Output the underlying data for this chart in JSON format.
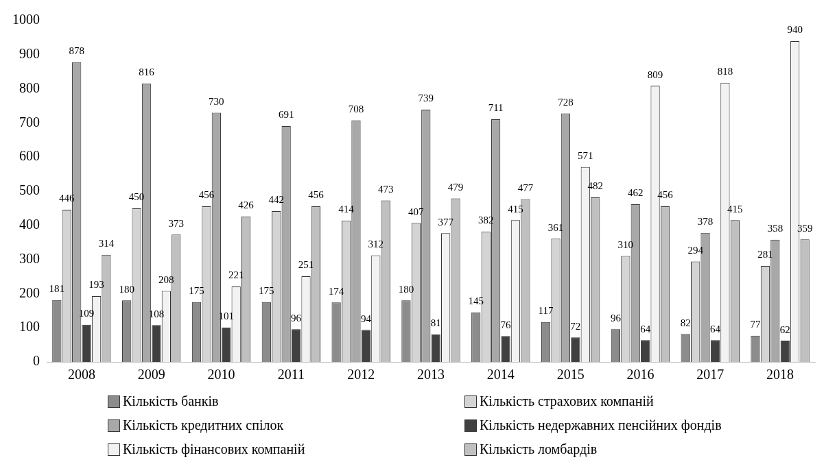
{
  "chart_data": {
    "type": "bar",
    "categories": [
      "2008",
      "2009",
      "2010",
      "2011",
      "2012",
      "2013",
      "2014",
      "2015",
      "2016",
      "2017",
      "2018"
    ],
    "series": [
      {
        "name": "Кількість банків",
        "color": "#8c8c8c",
        "values": [
          181,
          180,
          175,
          175,
          174,
          180,
          145,
          117,
          96,
          82,
          77
        ]
      },
      {
        "name": "Кількість страхових компаній",
        "color": "#d4d4d4",
        "values": [
          446,
          450,
          456,
          442,
          414,
          407,
          382,
          361,
          310,
          294,
          281
        ]
      },
      {
        "name": "Кількість кредитних спілок",
        "color": "#a8a8a8",
        "values": [
          878,
          816,
          730,
          691,
          708,
          739,
          711,
          728,
          462,
          378,
          358
        ]
      },
      {
        "name": "Кількість недержавних пенсійних фондів",
        "color": "#404040",
        "values": [
          109,
          108,
          101,
          96,
          94,
          81,
          76,
          72,
          64,
          64,
          62
        ]
      },
      {
        "name": "Кількість фінансових компаній",
        "color": "#f2f2f2",
        "values": [
          193,
          208,
          221,
          251,
          312,
          377,
          415,
          571,
          809,
          818,
          940
        ]
      },
      {
        "name": "Кількість ломбардів",
        "color": "#c0c0c0",
        "values": [
          314,
          373,
          426,
          456,
          473,
          479,
          477,
          482,
          456,
          415,
          359
        ]
      }
    ],
    "ylim": [
      0,
      1000
    ],
    "yticks": [
      0,
      100,
      200,
      300,
      400,
      500,
      600,
      700,
      800,
      900,
      1000
    ],
    "grid": false,
    "legend": "bottom",
    "data_labels": true
  }
}
